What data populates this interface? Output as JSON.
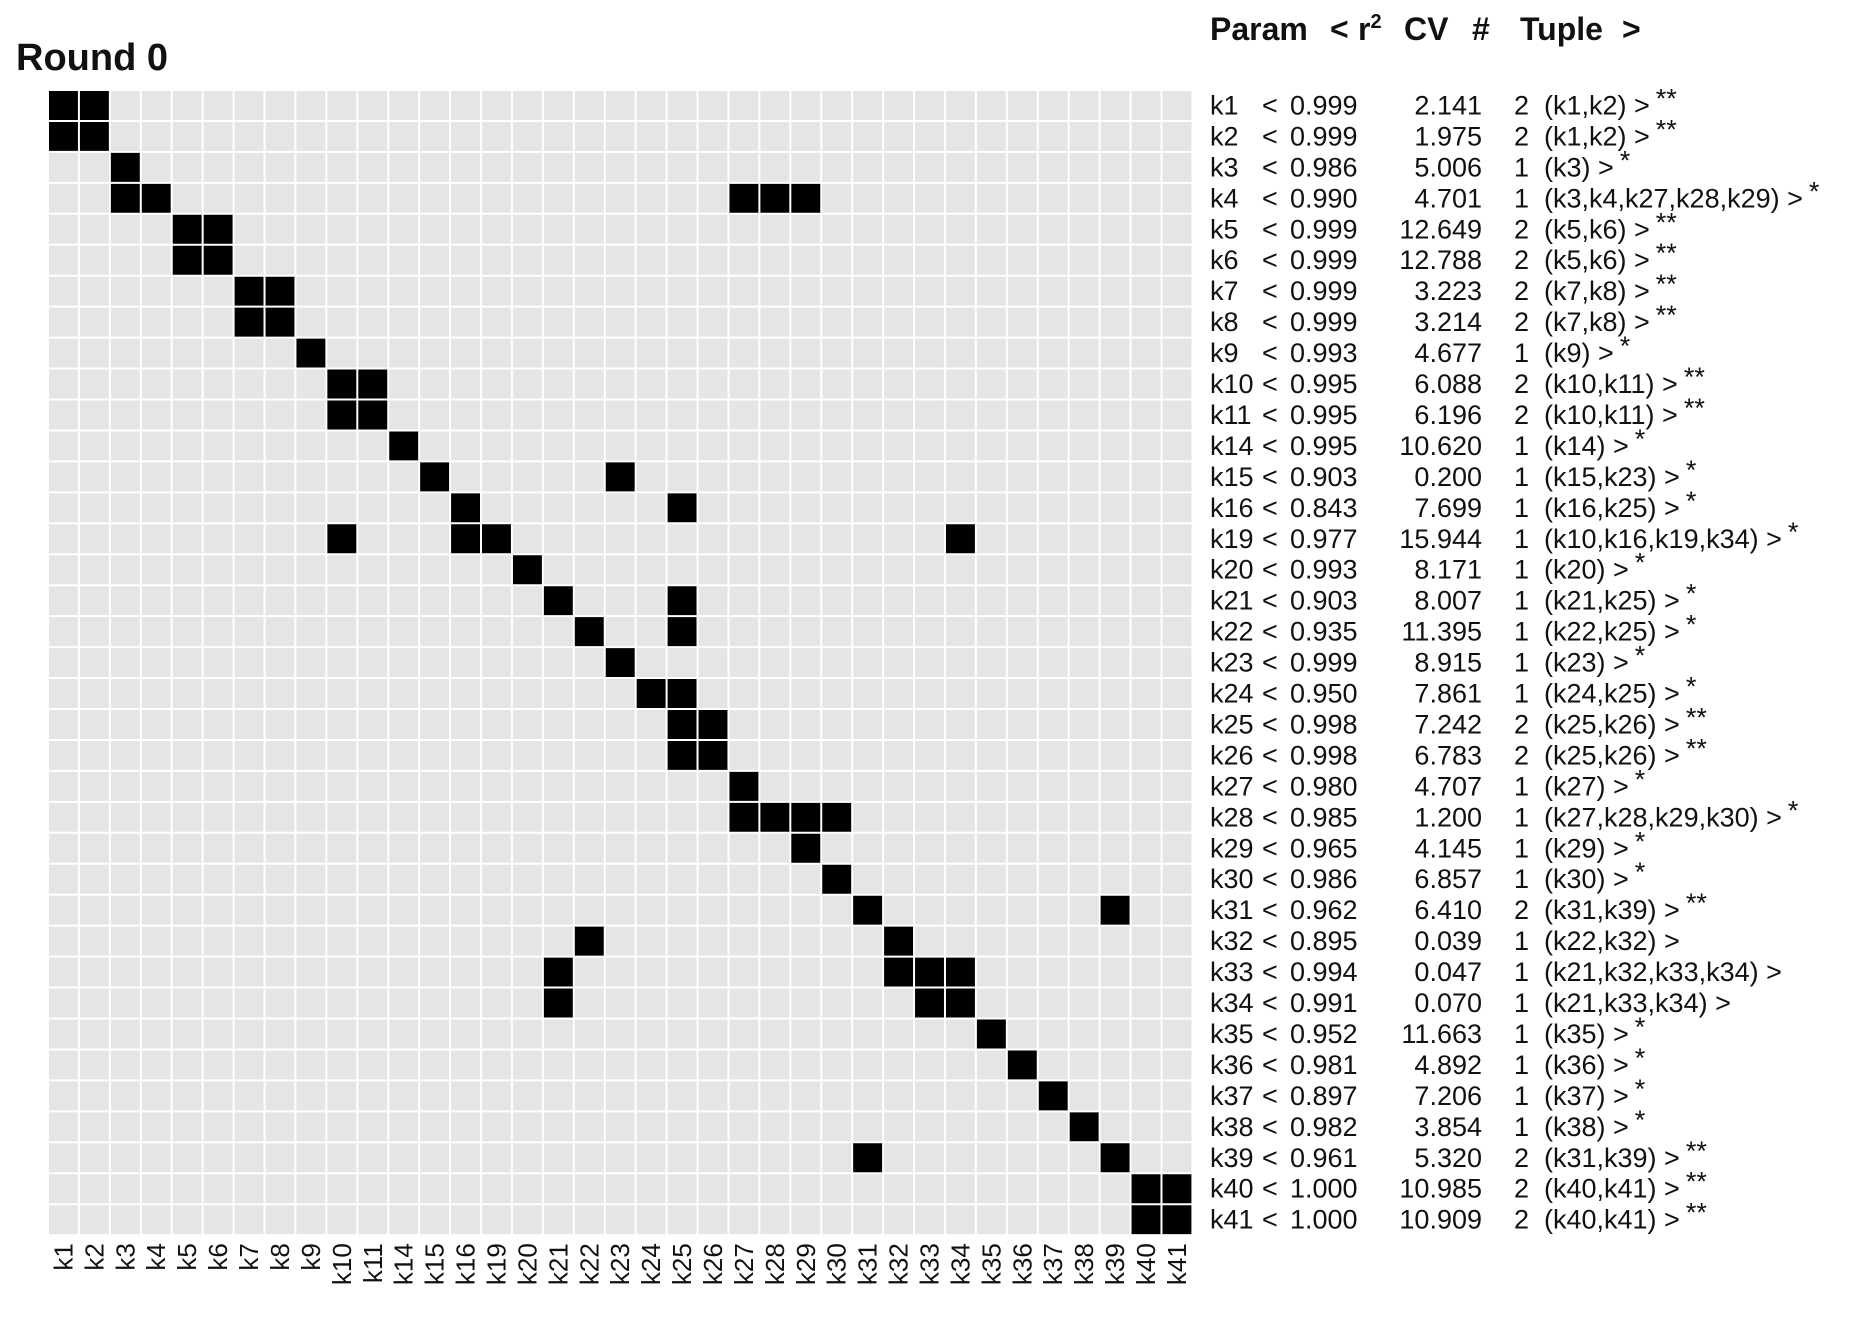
{
  "title": "Round 0",
  "header": {
    "param": "Param",
    "lt": "<",
    "r2_base": "r",
    "r2_sup": "2",
    "cv": "CV",
    "num": "#",
    "tuple": "Tuple",
    "gt": ">"
  },
  "chart_data": {
    "type": "heatmap",
    "colors": {
      "background": "#e5e5e5",
      "filled": "#000000",
      "grid": "#ffffff"
    },
    "categories": [
      "k1",
      "k2",
      "k3",
      "k4",
      "k5",
      "k6",
      "k7",
      "k8",
      "k9",
      "k10",
      "k11",
      "k14",
      "k15",
      "k16",
      "k19",
      "k20",
      "k21",
      "k22",
      "k23",
      "k24",
      "k25",
      "k26",
      "k27",
      "k28",
      "k29",
      "k30",
      "k31",
      "k32",
      "k33",
      "k34",
      "k35",
      "k36",
      "k37",
      "k38",
      "k39",
      "k40",
      "k41"
    ],
    "rows": [
      {
        "param": "k1",
        "r2": "0.999",
        "cv": "2.141",
        "n": "2",
        "tuple": "(k1,k2)",
        "stars": "**",
        "cells": [
          "k1",
          "k2"
        ]
      },
      {
        "param": "k2",
        "r2": "0.999",
        "cv": "1.975",
        "n": "2",
        "tuple": "(k1,k2)",
        "stars": "**",
        "cells": [
          "k1",
          "k2"
        ]
      },
      {
        "param": "k3",
        "r2": "0.986",
        "cv": "5.006",
        "n": "1",
        "tuple": "(k3)",
        "stars": "*",
        "cells": [
          "k3"
        ]
      },
      {
        "param": "k4",
        "r2": "0.990",
        "cv": "4.701",
        "n": "1",
        "tuple": "(k3,k4,k27,k28,k29)",
        "stars": "*",
        "cells": [
          "k3",
          "k4",
          "k27",
          "k28",
          "k29"
        ]
      },
      {
        "param": "k5",
        "r2": "0.999",
        "cv": "12.649",
        "n": "2",
        "tuple": "(k5,k6)",
        "stars": "**",
        "cells": [
          "k5",
          "k6"
        ]
      },
      {
        "param": "k6",
        "r2": "0.999",
        "cv": "12.788",
        "n": "2",
        "tuple": "(k5,k6)",
        "stars": "**",
        "cells": [
          "k5",
          "k6"
        ]
      },
      {
        "param": "k7",
        "r2": "0.999",
        "cv": "3.223",
        "n": "2",
        "tuple": "(k7,k8)",
        "stars": "**",
        "cells": [
          "k7",
          "k8"
        ]
      },
      {
        "param": "k8",
        "r2": "0.999",
        "cv": "3.214",
        "n": "2",
        "tuple": "(k7,k8)",
        "stars": "**",
        "cells": [
          "k7",
          "k8"
        ]
      },
      {
        "param": "k9",
        "r2": "0.993",
        "cv": "4.677",
        "n": "1",
        "tuple": "(k9)",
        "stars": "*",
        "cells": [
          "k9"
        ]
      },
      {
        "param": "k10",
        "r2": "0.995",
        "cv": "6.088",
        "n": "2",
        "tuple": "(k10,k11)",
        "stars": "**",
        "cells": [
          "k10",
          "k11"
        ]
      },
      {
        "param": "k11",
        "r2": "0.995",
        "cv": "6.196",
        "n": "2",
        "tuple": "(k10,k11)",
        "stars": "**",
        "cells": [
          "k10",
          "k11"
        ]
      },
      {
        "param": "k14",
        "r2": "0.995",
        "cv": "10.620",
        "n": "1",
        "tuple": "(k14)",
        "stars": "*",
        "cells": [
          "k14"
        ]
      },
      {
        "param": "k15",
        "r2": "0.903",
        "cv": "0.200",
        "n": "1",
        "tuple": "(k15,k23)",
        "stars": "*",
        "cells": [
          "k15",
          "k23"
        ]
      },
      {
        "param": "k16",
        "r2": "0.843",
        "cv": "7.699",
        "n": "1",
        "tuple": "(k16,k25)",
        "stars": "*",
        "cells": [
          "k16",
          "k25"
        ]
      },
      {
        "param": "k19",
        "r2": "0.977",
        "cv": "15.944",
        "n": "1",
        "tuple": "(k10,k16,k19,k34)",
        "stars": "*",
        "cells": [
          "k10",
          "k16",
          "k19",
          "k34"
        ]
      },
      {
        "param": "k20",
        "r2": "0.993",
        "cv": "8.171",
        "n": "1",
        "tuple": "(k20)",
        "stars": "*",
        "cells": [
          "k20"
        ]
      },
      {
        "param": "k21",
        "r2": "0.903",
        "cv": "8.007",
        "n": "1",
        "tuple": "(k21,k25)",
        "stars": "*",
        "cells": [
          "k21",
          "k25"
        ]
      },
      {
        "param": "k22",
        "r2": "0.935",
        "cv": "11.395",
        "n": "1",
        "tuple": "(k22,k25)",
        "stars": "*",
        "cells": [
          "k22",
          "k25"
        ]
      },
      {
        "param": "k23",
        "r2": "0.999",
        "cv": "8.915",
        "n": "1",
        "tuple": "(k23)",
        "stars": "*",
        "cells": [
          "k23"
        ]
      },
      {
        "param": "k24",
        "r2": "0.950",
        "cv": "7.861",
        "n": "1",
        "tuple": "(k24,k25)",
        "stars": "*",
        "cells": [
          "k24",
          "k25"
        ]
      },
      {
        "param": "k25",
        "r2": "0.998",
        "cv": "7.242",
        "n": "2",
        "tuple": "(k25,k26)",
        "stars": "**",
        "cells": [
          "k25",
          "k26"
        ]
      },
      {
        "param": "k26",
        "r2": "0.998",
        "cv": "6.783",
        "n": "2",
        "tuple": "(k25,k26)",
        "stars": "**",
        "cells": [
          "k25",
          "k26"
        ]
      },
      {
        "param": "k27",
        "r2": "0.980",
        "cv": "4.707",
        "n": "1",
        "tuple": "(k27)",
        "stars": "*",
        "cells": [
          "k27"
        ]
      },
      {
        "param": "k28",
        "r2": "0.985",
        "cv": "1.200",
        "n": "1",
        "tuple": "(k27,k28,k29,k30)",
        "stars": "*",
        "cells": [
          "k27",
          "k28",
          "k29",
          "k30"
        ]
      },
      {
        "param": "k29",
        "r2": "0.965",
        "cv": "4.145",
        "n": "1",
        "tuple": "(k29)",
        "stars": "*",
        "cells": [
          "k29"
        ]
      },
      {
        "param": "k30",
        "r2": "0.986",
        "cv": "6.857",
        "n": "1",
        "tuple": "(k30)",
        "stars": "*",
        "cells": [
          "k30"
        ]
      },
      {
        "param": "k31",
        "r2": "0.962",
        "cv": "6.410",
        "n": "2",
        "tuple": "(k31,k39)",
        "stars": "**",
        "cells": [
          "k31",
          "k39"
        ]
      },
      {
        "param": "k32",
        "r2": "0.895",
        "cv": "0.039",
        "n": "1",
        "tuple": "(k22,k32)",
        "stars": "",
        "cells": [
          "k22",
          "k32"
        ]
      },
      {
        "param": "k33",
        "r2": "0.994",
        "cv": "0.047",
        "n": "1",
        "tuple": "(k21,k32,k33,k34)",
        "stars": "",
        "cells": [
          "k21",
          "k32",
          "k33",
          "k34"
        ]
      },
      {
        "param": "k34",
        "r2": "0.991",
        "cv": "0.070",
        "n": "1",
        "tuple": "(k21,k33,k34)",
        "stars": "",
        "cells": [
          "k21",
          "k33",
          "k34"
        ]
      },
      {
        "param": "k35",
        "r2": "0.952",
        "cv": "11.663",
        "n": "1",
        "tuple": "(k35)",
        "stars": "*",
        "cells": [
          "k35"
        ]
      },
      {
        "param": "k36",
        "r2": "0.981",
        "cv": "4.892",
        "n": "1",
        "tuple": "(k36)",
        "stars": "*",
        "cells": [
          "k36"
        ]
      },
      {
        "param": "k37",
        "r2": "0.897",
        "cv": "7.206",
        "n": "1",
        "tuple": "(k37)",
        "stars": "*",
        "cells": [
          "k37"
        ]
      },
      {
        "param": "k38",
        "r2": "0.982",
        "cv": "3.854",
        "n": "1",
        "tuple": "(k38)",
        "stars": "*",
        "cells": [
          "k38"
        ]
      },
      {
        "param": "k39",
        "r2": "0.961",
        "cv": "5.320",
        "n": "2",
        "tuple": "(k31,k39)",
        "stars": "**",
        "cells": [
          "k31",
          "k39"
        ]
      },
      {
        "param": "k40",
        "r2": "1.000",
        "cv": "10.985",
        "n": "2",
        "tuple": "(k40,k41)",
        "stars": "**",
        "cells": [
          "k40",
          "k41"
        ]
      },
      {
        "param": "k41",
        "r2": "1.000",
        "cv": "10.909",
        "n": "2",
        "tuple": "(k40,k41)",
        "stars": "**",
        "cells": [
          "k40",
          "k41"
        ]
      }
    ]
  }
}
